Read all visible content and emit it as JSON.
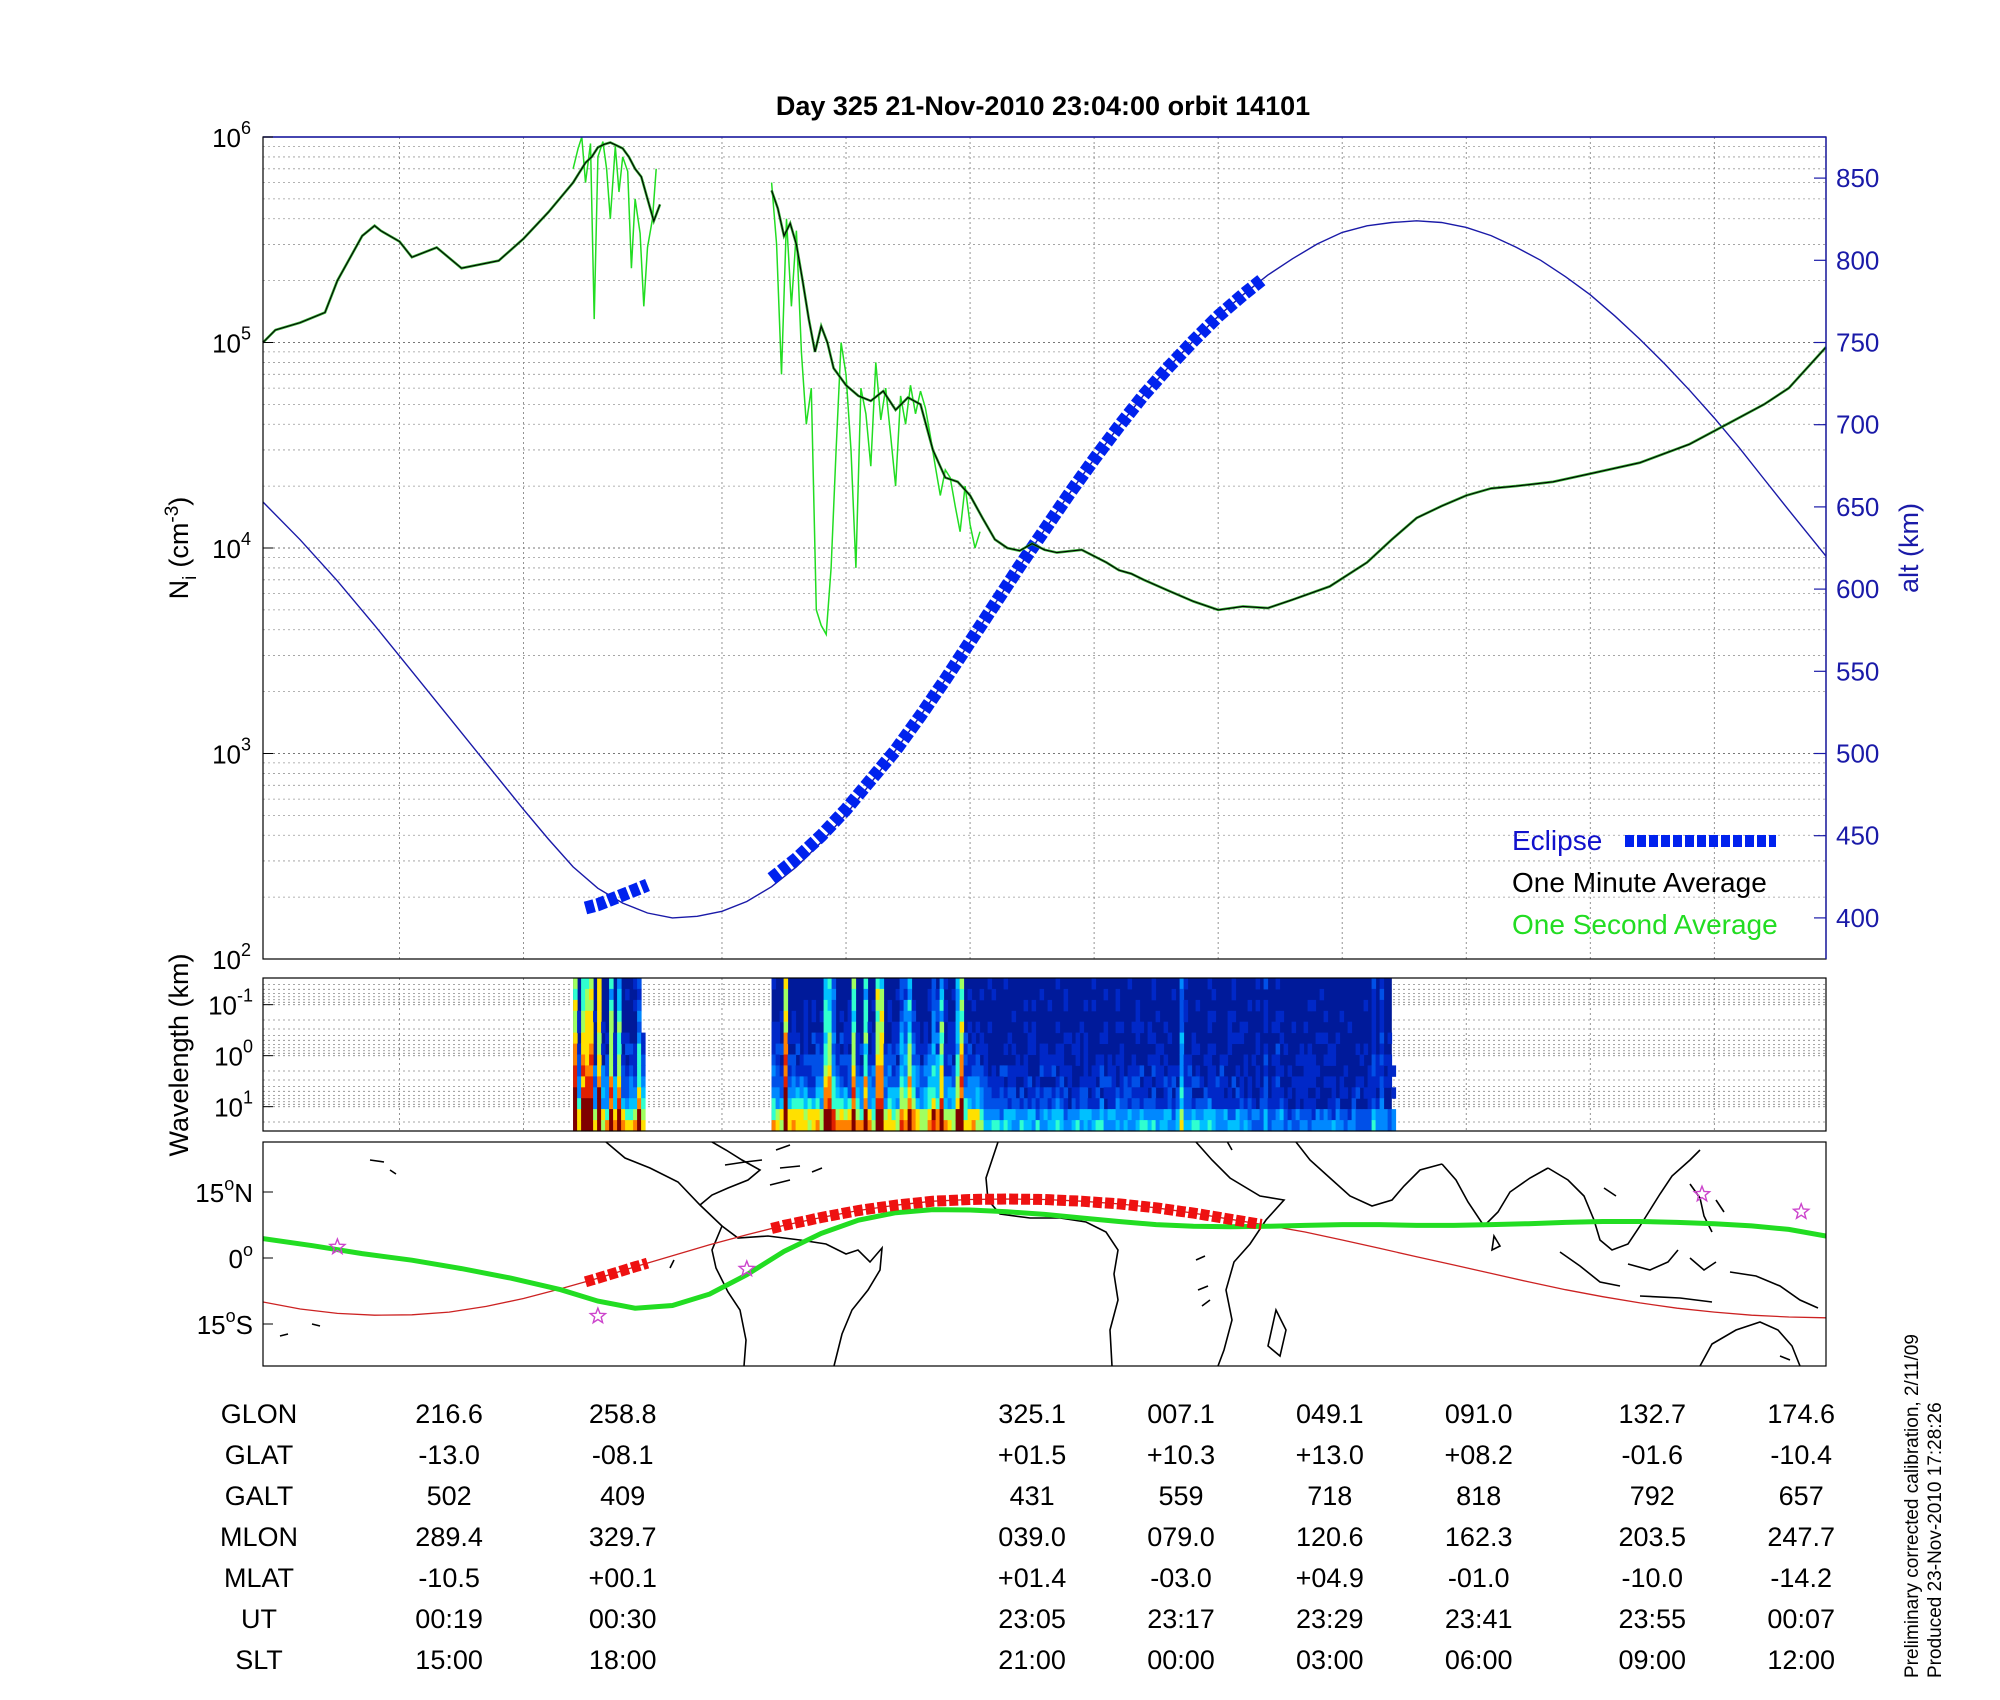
{
  "title": "Day 325  21-Nov-2010 23:04:00   orbit 14101",
  "colors": {
    "eclipse": "#0022ee",
    "one_minute": "#000000",
    "one_second": "#22dd22",
    "altitude": "#1a1aa8",
    "ground_track": "#cc2222",
    "magnetic_equator": "#22dd22",
    "eclipse_track": "#ee1111",
    "star": "#cc44cc"
  },
  "chart_data": [
    {
      "type": "line",
      "panel": "density",
      "ylabel": "N",
      "ylabel_sub": "i",
      "ylabel_unit": "(cm",
      "ylabel_exp": "-3",
      "ylabel_end": ")",
      "yscale": "log",
      "ylim": [
        100,
        1000000
      ],
      "y_ticks": [
        {
          "base": "10",
          "exp": "2",
          "value": 100
        },
        {
          "base": "10",
          "exp": "3",
          "value": 1000
        },
        {
          "base": "10",
          "exp": "4",
          "value": 10000
        },
        {
          "base": "10",
          "exp": "5",
          "value": 100000
        },
        {
          "base": "10",
          "exp": "6",
          "value": 1000000
        }
      ],
      "y2label": "alt (km)",
      "y2lim": [
        375,
        875
      ],
      "y2_ticks": [
        "400",
        "450",
        "500",
        "550",
        "600",
        "650",
        "700",
        "750",
        "800",
        "850"
      ],
      "x_minutes_range": [
        -61,
        65
      ],
      "grid": true,
      "legend_position": "bottom-right",
      "legend": {
        "eclipse": "Eclipse",
        "one_minute": "One Minute Average",
        "one_second": "One Second Average"
      },
      "series": [
        {
          "name": "One Minute Average",
          "x_minutes": [
            -61,
            -60,
            -58,
            -56,
            -55,
            -53,
            -52,
            -51.5,
            -50,
            -49,
            -47,
            -45,
            -42,
            -40,
            -38,
            -36,
            -35,
            -34.5,
            -34,
            -33.5,
            -33,
            -32.5,
            -32,
            -31.5,
            -31,
            -30.5,
            -30,
            -29.5,
            -29
          ],
          "y": [
            100000,
            115000,
            125000,
            140000,
            200000,
            330000,
            370000,
            350000,
            310000,
            260000,
            290000,
            230000,
            250000,
            320000,
            430000,
            600000,
            750000,
            800000,
            890000,
            920000,
            940000,
            910000,
            880000,
            800000,
            700000,
            640000,
            500000,
            390000,
            470000
          ]
        },
        {
          "name": "One Minute Average",
          "x_minutes": [
            -20,
            -19.5,
            -19,
            -18.5,
            -18,
            -17.5,
            -17,
            -16.5,
            -16,
            -15.5,
            -15,
            -14,
            -13,
            -12,
            -11,
            -10,
            -9,
            -8,
            -7,
            -6,
            -5,
            -4,
            -3,
            -2,
            -1,
            0,
            1,
            2,
            3,
            5,
            7,
            8,
            9,
            10,
            12,
            14,
            16,
            18,
            20,
            22,
            25,
            28,
            30,
            32,
            34,
            36,
            38,
            40,
            43,
            46,
            50,
            54,
            57,
            60,
            62,
            65
          ],
          "y": [
            550000,
            450000,
            330000,
            380000,
            300000,
            200000,
            130000,
            90000,
            120000,
            100000,
            75000,
            62000,
            55000,
            52000,
            58000,
            47000,
            54000,
            50000,
            30000,
            22000,
            21000,
            18000,
            14000,
            11000,
            10000,
            9700,
            10500,
            9800,
            9500,
            9800,
            8500,
            7800,
            7500,
            7000,
            6200,
            5500,
            5000,
            5200,
            5100,
            5600,
            6500,
            8500,
            11000,
            14000,
            16000,
            18000,
            19500,
            20000,
            21000,
            23000,
            26000,
            32000,
            40000,
            50000,
            60000,
            95000
          ]
        },
        {
          "name": "One Second Average",
          "x_minutes": [
            -36,
            -35.6,
            -35.3,
            -35,
            -34.6,
            -34.3,
            -34,
            -33.6,
            -33.3,
            -33,
            -32.6,
            -32.3,
            -32,
            -31.6,
            -31.3,
            -31,
            -30.6,
            -30.3,
            -30,
            -29.6,
            -29.3
          ],
          "y": [
            700000,
            880000,
            1000000,
            600000,
            930000,
            130000,
            800000,
            950000,
            700000,
            400000,
            900000,
            540000,
            800000,
            680000,
            230000,
            500000,
            340000,
            150000,
            290000,
            400000,
            700000
          ]
        },
        {
          "name": "One Second Average",
          "x_minutes": [
            -20,
            -19.6,
            -19.2,
            -18.8,
            -18.4,
            -18,
            -17.6,
            -17.2,
            -16.8,
            -16.4,
            -16,
            -15.6,
            -15.2,
            -14.8,
            -14.4,
            -14,
            -13.6,
            -13.2,
            -12.8,
            -12.4,
            -12,
            -11.6,
            -11.2,
            -10.8,
            -10.4,
            -10,
            -9.6,
            -9.2,
            -8.8,
            -8.4,
            -8,
            -7.6,
            -7.2,
            -6.8,
            -6.4,
            -6,
            -5.6,
            -5.2,
            -4.8,
            -4.4,
            -4,
            -3.6,
            -3.2
          ],
          "y": [
            600000,
            300000,
            70000,
            400000,
            150000,
            350000,
            90000,
            40000,
            60000,
            5000,
            4200,
            3800,
            8000,
            30000,
            100000,
            70000,
            30000,
            8000,
            60000,
            45000,
            25000,
            80000,
            42000,
            60000,
            35000,
            20000,
            55000,
            40000,
            62000,
            45000,
            58000,
            48000,
            35000,
            25000,
            18000,
            24000,
            22000,
            16000,
            12000,
            20000,
            13000,
            10000,
            12000
          ]
        },
        {
          "name": "alt (km)",
          "x_minutes": [
            -61,
            -58,
            -55,
            -52,
            -49,
            -46,
            -43,
            -40,
            -38,
            -36,
            -34,
            -32,
            -30,
            -28,
            -26,
            -24,
            -22,
            -20,
            -18,
            -16,
            -14,
            -12,
            -10,
            -8,
            -6,
            -4,
            -2,
            0,
            2,
            4,
            6,
            8,
            10,
            12,
            14,
            16,
            18,
            20,
            22,
            24,
            26,
            28,
            30,
            32,
            34,
            36,
            38,
            40,
            42,
            44,
            46,
            48,
            50,
            52,
            54,
            56,
            58,
            60,
            62,
            65
          ],
          "y": [
            653,
            630,
            605,
            578,
            550,
            522,
            494,
            466,
            448,
            431,
            418,
            409,
            403,
            400,
            401,
            404,
            410,
            419,
            431,
            446,
            463,
            482,
            502,
            523,
            545,
            568,
            591,
            614,
            636,
            658,
            679,
            699,
            718,
            735,
            751,
            766,
            779,
            791,
            801,
            810,
            817,
            821,
            823,
            824,
            823,
            820,
            815,
            808,
            800,
            790,
            779,
            766,
            752,
            737,
            721,
            704,
            686,
            667,
            648,
            620
          ]
        },
        {
          "name": "Eclipse",
          "x_minutes": [
            -35,
            -34,
            -33,
            -32,
            -31,
            -30
          ],
          "y": [
            406,
            408,
            411,
            414,
            417,
            420
          ]
        },
        {
          "name": "Eclipse",
          "x_minutes": [
            -20,
            -18,
            -16,
            -14,
            -12,
            -10,
            -8,
            -6,
            -4,
            -2,
            0,
            2,
            4,
            6,
            8,
            10,
            12,
            14,
            16,
            18,
            19.5
          ],
          "y": [
            424,
            436,
            450,
            466,
            484,
            502,
            523,
            545,
            568,
            591,
            614,
            636,
            658,
            679,
            699,
            718,
            735,
            751,
            766,
            779,
            788
          ]
        }
      ]
    },
    {
      "type": "heatmap",
      "panel": "spectrogram",
      "ylabel": "Wavelength (km)",
      "yscale": "log",
      "ylim": [
        0.03,
        30
      ],
      "y_ticks": [
        {
          "base": "10",
          "exp": "-1",
          "value": 0.1
        },
        {
          "base": "10",
          "exp": "0",
          "value": 1
        },
        {
          "base": "10",
          "exp": "1",
          "value": 10
        }
      ],
      "data_blocks_x_minutes": [
        [
          -36,
          -30.5
        ],
        [
          -20,
          30
        ]
      ]
    },
    {
      "type": "line",
      "panel": "map",
      "y_ticks": [
        {
          "value": "15",
          "deg": "o",
          "hemi": "N",
          "lat": 15
        },
        {
          "value": "0",
          "deg": "o",
          "hemi": "",
          "lat": 0
        },
        {
          "value": "15",
          "deg": "o",
          "hemi": "S",
          "lat": -15
        }
      ],
      "series": [
        {
          "name": "ground track",
          "x_minutes": [
            -61,
            -58,
            -55,
            -52,
            -49,
            -46,
            -43,
            -40,
            -37,
            -34,
            -31,
            -28,
            -25,
            -22,
            -19,
            -16,
            -13,
            -10,
            -7,
            -4,
            -1,
            2,
            5,
            8,
            11,
            14,
            17,
            20,
            23,
            26,
            29,
            32,
            35,
            38,
            41,
            44,
            47,
            50,
            53,
            56,
            59,
            62,
            65
          ],
          "lat": [
            -10,
            -11.6,
            -12.6,
            -13.0,
            -12.9,
            -12.3,
            -11.0,
            -9.2,
            -7.0,
            -4.6,
            -2.0,
            0.5,
            3.0,
            5.3,
            7.4,
            9.2,
            10.8,
            12.0,
            12.9,
            13.3,
            13.4,
            13.3,
            12.9,
            12.3,
            11.4,
            10.2,
            8.8,
            7.4,
            5.9,
            4.1,
            2.2,
            0.3,
            -1.6,
            -3.5,
            -5.4,
            -7.2,
            -8.8,
            -10.2,
            -11.4,
            -12.3,
            -13.0,
            -13.4,
            -13.6
          ]
        },
        {
          "name": "magnetic equator",
          "x_minutes": [
            -61,
            -57,
            -53,
            -49,
            -45,
            -41,
            -37,
            -34,
            -31,
            -28,
            -25,
            -22,
            -19,
            -16,
            -13,
            -10,
            -7,
            -4,
            -1,
            2,
            5,
            8,
            11,
            14,
            17,
            20,
            23,
            26,
            29,
            32,
            35,
            38,
            41,
            44,
            47,
            50,
            53,
            56,
            59,
            62,
            65
          ],
          "lat": [
            4.4,
            2.8,
            1.0,
            -0.5,
            -2.4,
            -4.6,
            -7.2,
            -9.8,
            -11.4,
            -10.8,
            -8.2,
            -3.8,
            1.5,
            5.6,
            8.6,
            10.3,
            11.0,
            10.9,
            10.5,
            9.9,
            9.1,
            8.3,
            7.6,
            7.2,
            7.1,
            7.2,
            7.4,
            7.6,
            7.6,
            7.4,
            7.4,
            7.6,
            7.8,
            8.1,
            8.3,
            8.3,
            8.1,
            7.8,
            7.3,
            6.5,
            5.0
          ]
        }
      ],
      "eclipse_segments_x_minutes": [
        [
          -35,
          -30
        ],
        [
          -20,
          19.5
        ]
      ],
      "stars": [
        {
          "x_minutes": -55,
          "lat": 2.5
        },
        {
          "x_minutes": -34,
          "lat": -13.2
        },
        {
          "x_minutes": -22,
          "lat": -2.5
        },
        {
          "x_minutes": 55,
          "lat": 14.5
        },
        {
          "x_minutes": 63,
          "lat": 10.5
        }
      ]
    }
  ],
  "ephemeris": {
    "row_labels": [
      "GLON",
      "GLAT",
      "GALT",
      "MLON",
      "MLAT",
      "UT",
      "SLT"
    ],
    "columns": [
      {
        "x_minutes": -46,
        "values": [
          "216.6",
          "-13.0",
          "502",
          "289.4",
          "-10.5",
          "00:19",
          "15:00"
        ]
      },
      {
        "x_minutes": -32,
        "values": [
          "258.8",
          "-08.1",
          "409",
          "329.7",
          "+00.1",
          "00:30",
          "18:00"
        ]
      },
      {
        "x_minutes": 1,
        "values": [
          "325.1",
          "+01.5",
          "431",
          "039.0",
          "+01.4",
          "23:05",
          "21:00"
        ]
      },
      {
        "x_minutes": 13,
        "values": [
          "007.1",
          "+10.3",
          "559",
          "079.0",
          "-03.0",
          "23:17",
          "00:00"
        ]
      },
      {
        "x_minutes": 25,
        "values": [
          "049.1",
          "+13.0",
          "718",
          "120.6",
          "+04.9",
          "23:29",
          "03:00"
        ]
      },
      {
        "x_minutes": 37,
        "values": [
          "091.0",
          "+08.2",
          "818",
          "162.3",
          "-01.0",
          "23:41",
          "06:00"
        ]
      },
      {
        "x_minutes": 51,
        "values": [
          "132.7",
          "-01.6",
          "792",
          "203.5",
          "-10.0",
          "23:55",
          "09:00"
        ]
      },
      {
        "x_minutes": 63,
        "values": [
          "174.6",
          "-10.4",
          "657",
          "247.7",
          "-14.2",
          "00:07",
          "12:00"
        ]
      }
    ]
  },
  "notes": [
    "Preliminary corrected calibration, 2/11/09",
    "Produced 23-Nov-2010 17:28:26"
  ]
}
